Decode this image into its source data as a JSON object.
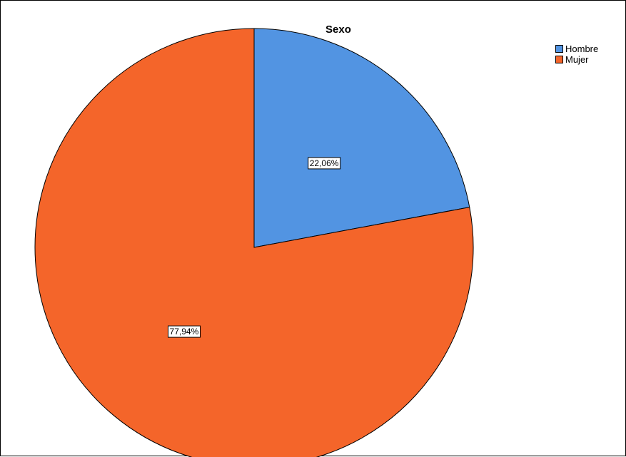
{
  "chart_data": {
    "type": "pie",
    "title": "Sexo",
    "categories": [
      "Hombre",
      "Mujer"
    ],
    "values": [
      22.06,
      77.94
    ],
    "data_labels": [
      "22,06%",
      "77,94%"
    ],
    "colors": [
      "#5294e2",
      "#f4652a"
    ],
    "legend_position": "top-right",
    "start_angle_deg": 0,
    "direction": "clockwise"
  },
  "legend": {
    "items": [
      {
        "label": "Hombre",
        "color": "#5294e2"
      },
      {
        "label": "Mujer",
        "color": "#f4652a"
      }
    ]
  }
}
